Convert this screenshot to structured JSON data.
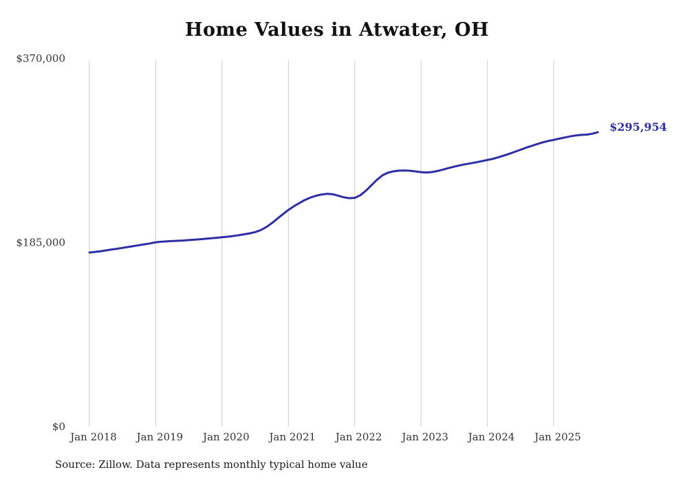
{
  "chart_data": {
    "type": "line",
    "title": "Home Values in Atwater, OH",
    "source_note": "Source: Zillow. Data represents monthly typical home value",
    "end_label": "$295,954",
    "line_color": "#2d2da6",
    "grid_color": "#cccccc",
    "ylim": [
      0,
      370000
    ],
    "grid": "vertical-only",
    "legend": "none",
    "x_start": "2018-01",
    "x_end": "2025-09",
    "x_tick_labels": [
      "Jan 2018",
      "Jan 2019",
      "Jan 2020",
      "Jan 2021",
      "Jan 2022",
      "Jan 2023",
      "Jan 2024",
      "Jan 2025"
    ],
    "y_ticks": [
      {
        "value": 0,
        "label": "$0"
      },
      {
        "value": 185000,
        "label": "$185,000"
      },
      {
        "value": 370000,
        "label": "$370,000"
      }
    ],
    "series": [
      {
        "name": "Typical home value (monthly)",
        "values": [
          175000,
          175600,
          176300,
          177100,
          178000,
          178800,
          179700,
          180600,
          181500,
          182400,
          183300,
          184200,
          185300,
          185800,
          186200,
          186500,
          186800,
          187100,
          187500,
          187900,
          188300,
          188800,
          189300,
          189800,
          190300,
          190900,
          191600,
          192400,
          193300,
          194300,
          195500,
          197500,
          200500,
          204500,
          209000,
          213500,
          217800,
          221500,
          224800,
          227800,
          230200,
          232000,
          233300,
          234000,
          233600,
          232200,
          230500,
          229600,
          229900,
          232500,
          237000,
          242500,
          248000,
          252500,
          255200,
          256600,
          257300,
          257500,
          257200,
          256500,
          255800,
          255400,
          255900,
          257000,
          258400,
          259900,
          261300,
          262600,
          263700,
          264700,
          265700,
          266800,
          268000,
          269200,
          270700,
          272400,
          274300,
          276300,
          278300,
          280300,
          282200,
          284000,
          285700,
          287100,
          288200,
          289400,
          290600,
          291700,
          292600,
          293200,
          293500,
          294400,
          295954
        ]
      }
    ]
  }
}
